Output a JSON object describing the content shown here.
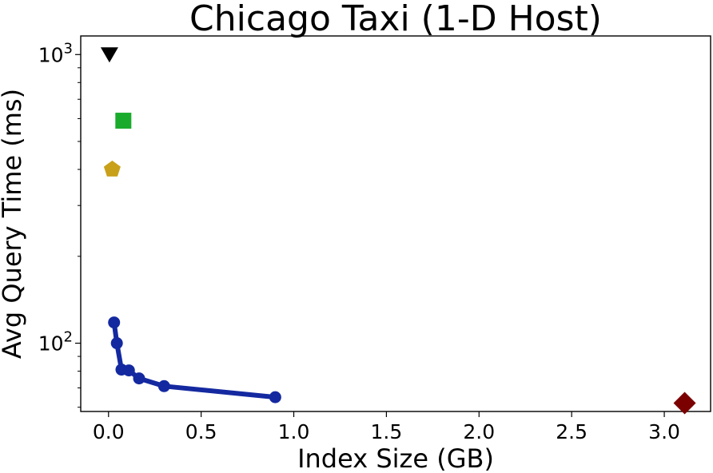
{
  "chart_data": {
    "type": "scatter",
    "title": "Chicago Taxi (1-D Host)",
    "xlabel": "Index Size (GB)",
    "ylabel": "Avg Query Time (ms)",
    "xlim": [
      -0.15,
      3.25
    ],
    "ylim": [
      58,
      1160
    ],
    "yscale": "log",
    "grid": false,
    "x_ticks": [
      0.0,
      0.5,
      1.0,
      1.5,
      2.0,
      2.5,
      3.0
    ],
    "x_tick_labels": [
      "0.0",
      "0.5",
      "1.0",
      "1.5",
      "2.0",
      "2.5",
      "3.0"
    ],
    "y_ticks": [
      100,
      1000
    ],
    "y_tick_labels": [
      {
        "base": "10",
        "exp": "2"
      },
      {
        "base": "10",
        "exp": "3"
      }
    ],
    "series": [
      {
        "marker": "circle",
        "line": true,
        "color": "#1429a0",
        "points": [
          {
            "x": 0.03,
            "y": 118
          },
          {
            "x": 0.045,
            "y": 100
          },
          {
            "x": 0.07,
            "y": 81
          },
          {
            "x": 0.11,
            "y": 80.5
          },
          {
            "x": 0.165,
            "y": 75.5
          },
          {
            "x": 0.3,
            "y": 71
          },
          {
            "x": 0.9,
            "y": 65
          }
        ]
      },
      {
        "marker": "triangle-down",
        "line": false,
        "color": "#000000",
        "points": [
          {
            "x": 0.005,
            "y": 1000
          }
        ]
      },
      {
        "marker": "square",
        "line": false,
        "color": "#1aab2d",
        "points": [
          {
            "x": 0.08,
            "y": 590
          }
        ]
      },
      {
        "marker": "pentagon",
        "line": false,
        "color": "#c9a01a",
        "points": [
          {
            "x": 0.02,
            "y": 400
          }
        ]
      },
      {
        "marker": "diamond",
        "line": false,
        "color": "#7b0000",
        "points": [
          {
            "x": 3.11,
            "y": 62
          }
        ]
      }
    ]
  }
}
